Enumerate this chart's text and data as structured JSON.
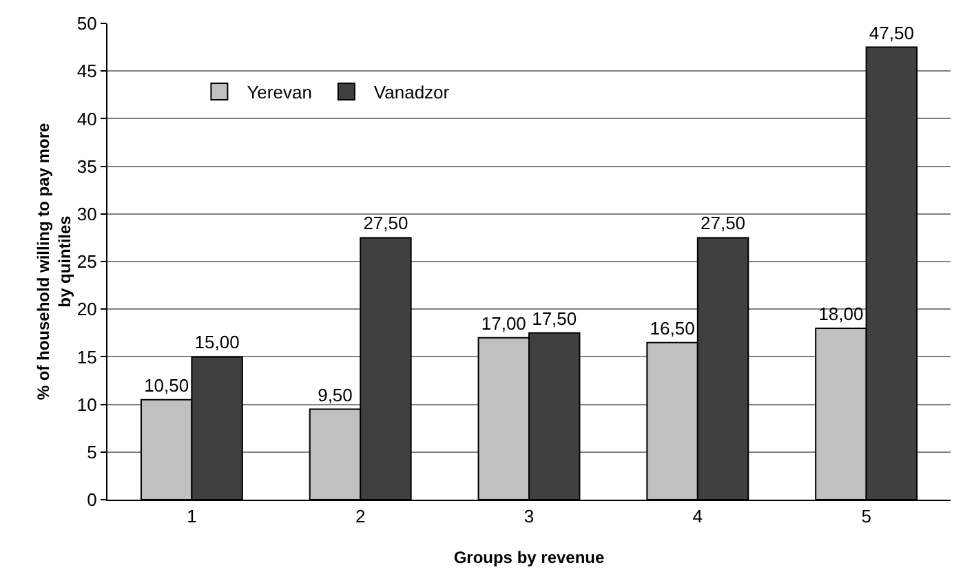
{
  "chart_data": {
    "type": "bar",
    "xlabel": "Groups by revenue",
    "ylabel": "% of household willing to pay more by quintiles",
    "categories": [
      "1",
      "2",
      "3",
      "4",
      "5"
    ],
    "series": [
      {
        "name": "Yerevan",
        "color": "#c0c0c0",
        "values": [
          10.5,
          9.5,
          17,
          16.5,
          18
        ],
        "value_labels": [
          "10,50",
          "9,50",
          "17,00",
          "16,50",
          "18,00"
        ]
      },
      {
        "name": "Vanadzor",
        "color": "#404040",
        "values": [
          15,
          27.5,
          17.5,
          27.5,
          47.5
        ],
        "value_labels": [
          "15,00",
          "27,50",
          "17,50",
          "27,50",
          "47,50"
        ]
      }
    ],
    "ylim": [
      0,
      50
    ],
    "yticks": [
      0,
      5,
      10,
      15,
      20,
      25,
      30,
      35,
      40,
      45,
      50
    ],
    "grid": "y",
    "legend": "top left"
  }
}
